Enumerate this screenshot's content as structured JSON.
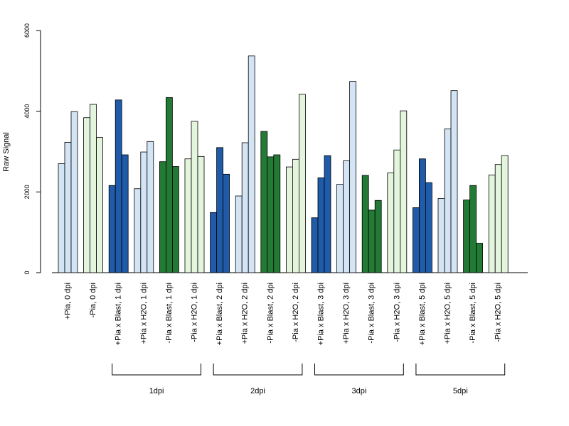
{
  "chart_data": {
    "type": "bar",
    "title": "",
    "xlabel": "",
    "ylabel": "Raw Signal",
    "ylim": [
      0,
      6000
    ],
    "yticks": [
      0,
      2000,
      4000,
      6000
    ],
    "grid": false,
    "legend": "none",
    "bars_per_group": 3,
    "categories": [
      "+Pia, 0 dpi",
      "-Pia, 0 dpi",
      "+Pia x Blast, 1 dpi",
      "+Pia x H2O, 1 dpi",
      "-Pia x Blast, 1 dpi",
      "-Pia x H2O, 1 dpi",
      "+Pia x Blast, 2 dpi",
      "+Pia x H2O, 2 dpi",
      "-Pia x Blast, 2 dpi",
      "-Pia x H2O, 2 dpi",
      "+Pia x Blast, 3 dpi",
      "+Pia x H2O, 3 dpi",
      "-Pia x Blast, 3 dpi",
      "-Pia x H2O, 3 dpi",
      "+Pia x Blast, 5 dpi",
      "+Pia x H2O, 5 dpi",
      "-Pia x Blast, 5 dpi",
      "-Pia x H2O, 5 dpi"
    ],
    "colors": [
      "#d3e4f5",
      "#e3f5dc",
      "#1f5ba8",
      "#d3e4f5",
      "#237a35",
      "#e3f5dc",
      "#1f5ba8",
      "#d3e4f5",
      "#237a35",
      "#e3f5dc",
      "#1f5ba8",
      "#d3e4f5",
      "#237a35",
      "#e3f5dc",
      "#1f5ba8",
      "#d3e4f5",
      "#237a35",
      "#e3f5dc"
    ],
    "values": [
      [
        2700,
        3230,
        3990
      ],
      [
        3840,
        4170,
        3350
      ],
      [
        2160,
        4280,
        2920
      ],
      [
        2080,
        2990,
        3250
      ],
      [
        2750,
        4340,
        2630
      ],
      [
        2820,
        3750,
        2880
      ],
      [
        1490,
        3100,
        2440
      ],
      [
        1900,
        3220,
        5370
      ],
      [
        3500,
        2870,
        2920
      ],
      [
        2620,
        2810,
        4420
      ],
      [
        1360,
        2350,
        2900
      ],
      [
        2190,
        2770,
        4740
      ],
      [
        2410,
        1550,
        1790
      ],
      [
        2470,
        3040,
        4010
      ],
      [
        1610,
        2820,
        2230
      ],
      [
        1840,
        3560,
        4510
      ],
      [
        1800,
        2160,
        730
      ],
      [
        2420,
        2680,
        2900
      ]
    ],
    "group_brackets": [
      {
        "label": "1dpi",
        "from": 2,
        "to": 5
      },
      {
        "label": "2dpi",
        "from": 6,
        "to": 9
      },
      {
        "label": "3dpi",
        "from": 10,
        "to": 13
      },
      {
        "label": "5dpi",
        "from": 14,
        "to": 17
      }
    ]
  }
}
